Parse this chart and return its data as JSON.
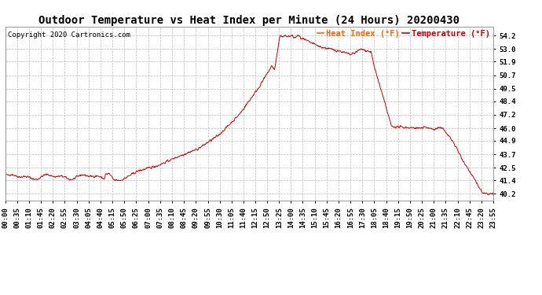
{
  "title": "Outdoor Temperature vs Heat Index per Minute (24 Hours) 20200430",
  "copyright": "Copyright 2020 Cartronics.com",
  "legend_heat": "Heat Index (°F)",
  "legend_temp": "Temperature (°F)",
  "heat_color": "#ff6600",
  "temp_color": "#cc0000",
  "line_color": "#cc0000",
  "background_color": "#ffffff",
  "grid_color": "#bbbbbb",
  "title_fontsize": 10,
  "tick_fontsize": 6.5,
  "copyright_fontsize": 6.5,
  "legend_fontsize": 7.5,
  "ylim_min": 39.6,
  "ylim_max": 55.0,
  "yticks": [
    40.2,
    41.4,
    42.5,
    43.7,
    44.9,
    46.0,
    47.2,
    48.4,
    49.5,
    50.7,
    51.9,
    53.0,
    54.2
  ],
  "xtick_labels": [
    "00:00",
    "00:35",
    "01:10",
    "01:45",
    "02:20",
    "02:55",
    "03:30",
    "04:05",
    "04:40",
    "05:15",
    "05:50",
    "06:25",
    "07:00",
    "07:35",
    "08:10",
    "08:45",
    "09:20",
    "09:55",
    "10:30",
    "11:05",
    "11:40",
    "12:15",
    "12:50",
    "13:25",
    "14:00",
    "14:35",
    "15:10",
    "15:45",
    "16:20",
    "16:55",
    "17:30",
    "18:05",
    "18:40",
    "19:15",
    "19:50",
    "20:25",
    "21:00",
    "21:35",
    "22:10",
    "22:45",
    "23:20",
    "23:55"
  ]
}
